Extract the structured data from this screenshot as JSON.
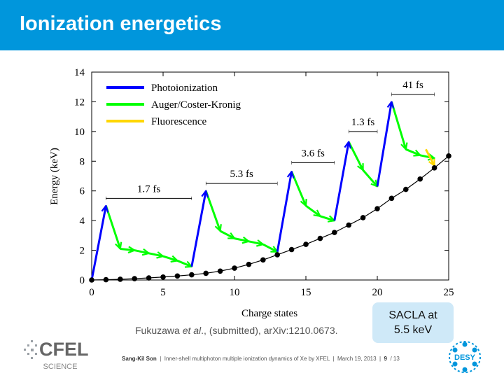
{
  "slide": {
    "title": "Ionization energetics",
    "callout": [
      "SACLA at",
      "5.5 keV"
    ],
    "citation": {
      "pre": "Fukuzawa ",
      "italic": "et al",
      "post": "., (submitted), arXiv:1210.0673."
    },
    "footer": {
      "author": "Sang-Kil Son",
      "talk": "Inner-shell multiphoton multiple ionization dynamics of Xe by XFEL",
      "date": "March 19, 2013",
      "page": "9",
      "total": "/ 13"
    },
    "logo_left": {
      "text": "CFEL",
      "sub": "SCIENCE"
    },
    "logo_right": {
      "text": "DESY"
    }
  },
  "colors": {
    "header": "#0096dc",
    "photoionization": "#0000ff",
    "auger": "#00ff00",
    "fluorescence": "#ffd700",
    "curve": "#000000"
  },
  "chart_data": {
    "type": "line",
    "xlabel": "Charge states",
    "ylabel": "Energy (keV)",
    "xlim": [
      0,
      25
    ],
    "ylim": [
      0,
      14
    ],
    "xticks": [
      0,
      5,
      10,
      15,
      20,
      25
    ],
    "yticks": [
      0,
      2,
      4,
      6,
      8,
      10,
      12,
      14
    ],
    "legend_position": "top-left",
    "legend": [
      {
        "name": "Photoionization",
        "color": "#0000ff"
      },
      {
        "name": "Auger/Coster-Kronig",
        "color": "#00ff00"
      },
      {
        "name": "Fluorescence",
        "color": "#ffd700"
      }
    ],
    "ionization_curve": {
      "x": [
        0,
        1,
        2,
        3,
        4,
        5,
        6,
        7,
        8,
        9,
        10,
        11,
        12,
        13,
        14,
        15,
        16,
        17,
        18,
        19,
        20,
        21,
        22,
        23,
        24,
        25
      ],
      "y": [
        0.0,
        0.02,
        0.05,
        0.09,
        0.14,
        0.2,
        0.27,
        0.35,
        0.45,
        0.6,
        0.8,
        1.05,
        1.35,
        1.7,
        2.05,
        2.4,
        2.8,
        3.2,
        3.7,
        4.2,
        4.8,
        5.5,
        6.1,
        6.8,
        7.55,
        8.35
      ]
    },
    "photoionization": [
      {
        "x": [
          0,
          1
        ],
        "y": [
          0.0,
          5.0
        ]
      },
      {
        "x": [
          7,
          8
        ],
        "y": [
          0.9,
          6.0
        ]
      },
      {
        "x": [
          13,
          14
        ],
        "y": [
          1.9,
          7.3
        ]
      },
      {
        "x": [
          17,
          18
        ],
        "y": [
          4.0,
          9.3
        ]
      },
      {
        "x": [
          20,
          21
        ],
        "y": [
          6.3,
          12.0
        ]
      }
    ],
    "auger": [
      {
        "x": [
          1,
          2,
          3,
          4,
          5,
          6,
          7
        ],
        "y": [
          5.0,
          2.1,
          2.0,
          1.8,
          1.6,
          1.3,
          0.9
        ]
      },
      {
        "x": [
          8,
          9,
          10,
          11,
          12,
          13
        ],
        "y": [
          6.0,
          3.3,
          2.8,
          2.6,
          2.4,
          1.9
        ]
      },
      {
        "x": [
          14,
          15,
          16,
          17
        ],
        "y": [
          7.3,
          5.0,
          4.3,
          4.0
        ]
      },
      {
        "x": [
          18,
          19,
          20
        ],
        "y": [
          9.3,
          7.4,
          6.3
        ]
      },
      {
        "x": [
          21,
          22,
          23,
          24
        ],
        "y": [
          12.0,
          8.8,
          8.4,
          8.2
        ]
      }
    ],
    "fluorescence": [
      {
        "x": [
          23.4,
          24
        ],
        "y": [
          8.8,
          7.7
        ]
      }
    ],
    "time_annotations": [
      {
        "label": "1.7 fs",
        "x": [
          1,
          7
        ],
        "y": 5.5
      },
      {
        "label": "5.3 fs",
        "x": [
          8,
          13
        ],
        "y": 6.5
      },
      {
        "label": "3.6 fs",
        "x": [
          14,
          17
        ],
        "y": 7.9
      },
      {
        "label": "1.3 fs",
        "x": [
          18,
          20
        ],
        "y": 10.0
      },
      {
        "label": "41 fs",
        "x": [
          21,
          24
        ],
        "y": 12.5
      }
    ]
  }
}
